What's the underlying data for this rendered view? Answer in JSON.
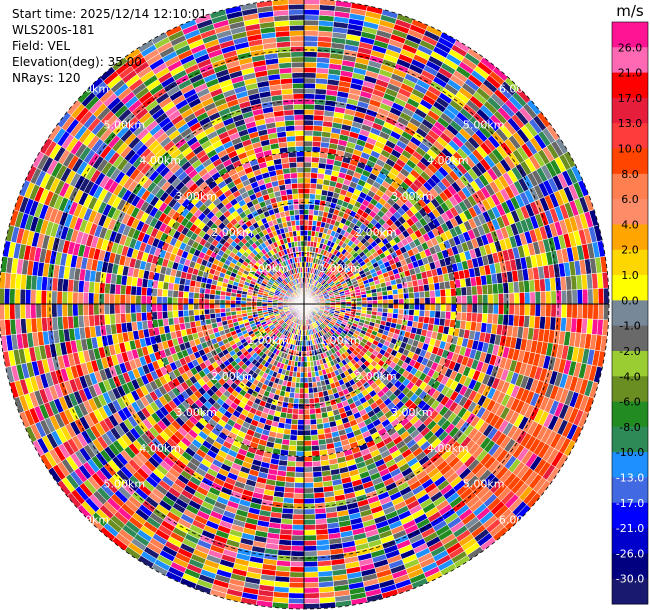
{
  "info": {
    "start_time": "Start time: 2025/12/14 12:10:01",
    "site": "WLS200s-181",
    "field": "Field: VEL",
    "elevation": "Elevation(deg): 35.00",
    "nrays": "NRays: 120"
  },
  "chart_data": {
    "type": "heatmap",
    "projection": "polar (PPI)",
    "field": "VEL",
    "nrays": 120,
    "elevation_deg": 35.0,
    "range_rings_km": [
      1,
      2,
      3,
      4,
      5,
      6
    ],
    "ring_labels": [
      "1.00km",
      "2.00km",
      "3.00km",
      "4.00km",
      "5.00km",
      "6.00km"
    ],
    "colorbar": {
      "unit": "m/s",
      "ticks": [
        "26.0",
        "21.0",
        "17.0",
        "13.0",
        "10.0",
        "8.0",
        "6.0",
        "4.0",
        "2.0",
        "1.0",
        "0.0",
        "-1.0",
        "-2.0",
        "-4.0",
        "-6.0",
        "-8.0",
        "-10.0",
        "-13.0",
        "-17.0",
        "-21.0",
        "-26.0",
        "-30.0"
      ],
      "colors": [
        "#ff1493",
        "#ff69b4",
        "#ff0000",
        "#e61e3c",
        "#ff3c3c",
        "#ff4500",
        "#ff7f50",
        "#ff8c69",
        "#ffa500",
        "#ffd700",
        "#ffff00",
        "#778899",
        "#696969",
        "#9acd32",
        "#6b8e23",
        "#228b22",
        "#2e8b57",
        "#1e90ff",
        "#4169e1",
        "#0000ff",
        "#0000cd",
        "#000080",
        "#191970"
      ]
    }
  }
}
